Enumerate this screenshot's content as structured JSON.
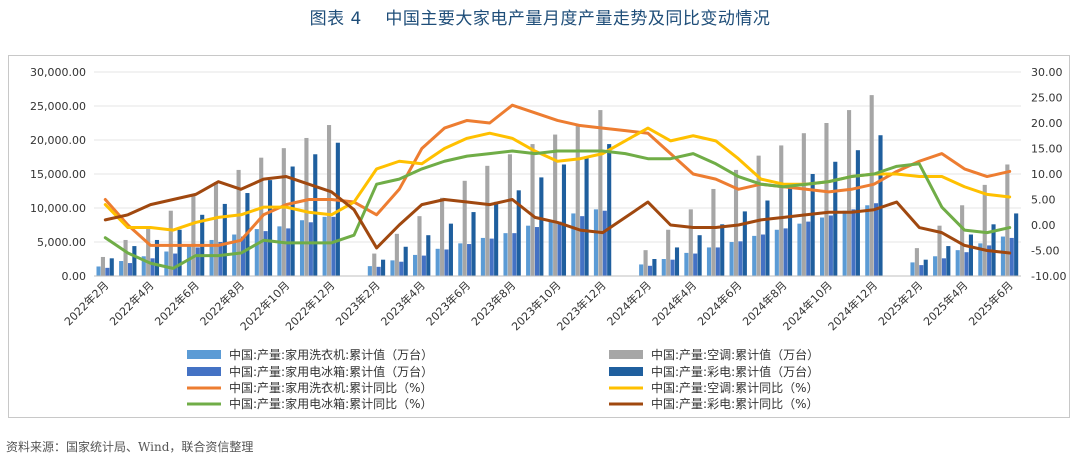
{
  "title": "图表 4    中国主要大家电产量月度产量走势及同比变动情况",
  "source": "资料来源：国家统计局、Wind，联合资信整理",
  "chart_data": {
    "type": "bar+line",
    "title": "",
    "xlabel": "",
    "ylabel": "",
    "ylim": [
      0,
      30000
    ],
    "y2lim": [
      -10,
      30
    ],
    "y_tick_labels": [
      "0.00",
      "5,000.00",
      "10,000.00",
      "15,000.00",
      "20,000.00",
      "25,000.00",
      "30,000.00"
    ],
    "y2_tick_labels": [
      "-10.00",
      "-5.00",
      "0.00",
      "5.00",
      "10.00",
      "15.00",
      "20.00",
      "25.00",
      "30.00"
    ],
    "x": [
      "2022年2月",
      "2022年3月",
      "2022年4月",
      "2022年5月",
      "2022年6月",
      "2022年7月",
      "2022年8月",
      "2022年9月",
      "2022年10月",
      "2022年11月",
      "2022年12月",
      "",
      "2023年2月",
      "2023年3月",
      "2023年4月",
      "2023年5月",
      "2023年6月",
      "2023年7月",
      "2023年8月",
      "2023年9月",
      "2023年10月",
      "2023年11月",
      "2023年12月",
      "",
      "2024年2月",
      "2024年3月",
      "2024年4月",
      "2024年5月",
      "2024年6月",
      "2024年7月",
      "2024年8月",
      "2024年9月",
      "2024年10月",
      "2024年11月",
      "2024年12月",
      "",
      "2025年2月",
      "2025年3月",
      "2025年4月",
      "2025年5月",
      "2025年6月"
    ],
    "x_tick_labels": [
      "2022年2月",
      "2022年4月",
      "2022年6月",
      "2022年8月",
      "2022年10月",
      "2022年12月",
      "2023年2月",
      "2023年4月",
      "2023年6月",
      "2023年8月",
      "2023年10月",
      "2023年12月",
      "2024年2月",
      "2024年4月",
      "2024年6月",
      "2024年8月",
      "2024年10月",
      "2024年12月",
      "2025年2月",
      "2025年4月",
      "2025年6月"
    ],
    "legend_position": "bottom",
    "bar_series": [
      {
        "name": "中国:产量:家用洗衣机:累计值（万台）",
        "color": "#5b9bd5",
        "values": [
          1400,
          2200,
          2900,
          3600,
          4500,
          5300,
          6100,
          6900,
          7300,
          8200,
          8700,
          null,
          1450,
          2300,
          3100,
          4000,
          4800,
          5600,
          6300,
          7400,
          8200,
          9200,
          9800,
          null,
          1700,
          2500,
          3400,
          4200,
          5000,
          5900,
          6800,
          7700,
          8600,
          9600,
          10400,
          null,
          2000,
          2900,
          3800,
          4800,
          5800
        ]
      },
      {
        "name": "中国:产量:空调:累计值（万台）",
        "color": "#a6a6a6",
        "values": [
          2800,
          5300,
          7300,
          9600,
          12000,
          13800,
          15600,
          17400,
          18800,
          20300,
          22200,
          null,
          3300,
          6200,
          8800,
          11500,
          14000,
          16200,
          17900,
          19400,
          20800,
          22300,
          24400,
          null,
          3800,
          6800,
          9800,
          12800,
          15600,
          17700,
          19200,
          21000,
          22500,
          24400,
          26600,
          null,
          4100,
          7400,
          10400,
          13400,
          16400
        ]
      },
      {
        "name": "中国:产量:家用电冰箱:累计值（万台）",
        "color": "#4472c4",
        "values": [
          1200,
          1900,
          2600,
          3300,
          4200,
          5000,
          5800,
          6600,
          7000,
          7900,
          8700,
          null,
          1350,
          2100,
          3000,
          3900,
          4700,
          5500,
          6300,
          7200,
          8000,
          8800,
          9600,
          null,
          1500,
          2400,
          3300,
          4200,
          5100,
          6100,
          7000,
          8000,
          8900,
          9800,
          10700,
          null,
          1600,
          2600,
          3500,
          4500,
          5600
        ]
      },
      {
        "name": "中国:产量:彩电:累计值（万台）",
        "color": "#1f5f9e",
        "values": [
          2600,
          4400,
          5300,
          6800,
          9000,
          10600,
          12200,
          14100,
          16100,
          17900,
          19600,
          null,
          2400,
          4300,
          6000,
          7700,
          9400,
          10900,
          12600,
          14500,
          16400,
          17600,
          19400,
          null,
          2500,
          4200,
          6000,
          7600,
          9500,
          11100,
          12900,
          15000,
          16800,
          18500,
          20700,
          null,
          2400,
          4400,
          6100,
          7600,
          9200
        ]
      }
    ],
    "line_series": [
      {
        "name": "中国:产量:家用洗衣机:累计同比（%）",
        "color": "#ed7d31",
        "values": [
          5.0,
          0.0,
          -4.0,
          -4.0,
          -4.0,
          -4.0,
          -3.0,
          2.0,
          4.0,
          5.0,
          5.0,
          4.5,
          2.0,
          7.0,
          15.0,
          19.0,
          20.5,
          20.0,
          23.5,
          22.0,
          20.5,
          19.5,
          19.0,
          18.5,
          18.0,
          14.0,
          10.0,
          9.0,
          7.0,
          8.0,
          7.5,
          7.0,
          6.5,
          7.0,
          8.0,
          10.5,
          12.5,
          14.0,
          11.0,
          9.5,
          10.5
        ]
      },
      {
        "name": "中国:产量:空调:累计同比（%）",
        "color": "#ffc000",
        "values": [
          4.0,
          -0.5,
          -0.5,
          -1.0,
          0.5,
          1.5,
          2.0,
          3.5,
          3.5,
          2.5,
          2.0,
          4.5,
          11.0,
          12.5,
          12.0,
          15.0,
          17.0,
          18.0,
          17.0,
          14.5,
          12.5,
          13.0,
          14.0,
          16.5,
          19.0,
          16.5,
          17.5,
          16.5,
          13.0,
          9.0,
          8.0,
          8.0,
          8.5,
          9.5,
          10.0,
          10.0,
          9.5,
          9.5,
          7.5,
          6.0,
          5.5
        ]
      },
      {
        "name": "中国:产量:家用电冰箱:累计同比（%）",
        "color": "#70ad47",
        "values": [
          -2.5,
          -5.5,
          -7.5,
          -8.5,
          -6.0,
          -6.0,
          -5.5,
          -3.0,
          -3.5,
          -3.5,
          -3.5,
          -2.0,
          8.0,
          9.0,
          11.0,
          12.5,
          13.5,
          14.0,
          14.5,
          14.0,
          14.5,
          14.5,
          14.5,
          14.0,
          13.0,
          13.0,
          14.0,
          12.0,
          9.5,
          8.0,
          7.5,
          8.0,
          8.5,
          9.5,
          10.0,
          11.5,
          12.0,
          3.5,
          -1.0,
          -1.5,
          -0.5
        ]
      },
      {
        "name": "中国:产量:彩电:累计同比（%）",
        "color": "#a0480f",
        "values": [
          1.0,
          2.0,
          4.0,
          5.0,
          6.0,
          8.5,
          7.0,
          9.0,
          9.5,
          8.0,
          6.5,
          3.0,
          -4.5,
          0.0,
          4.0,
          5.0,
          4.5,
          4.0,
          5.0,
          1.5,
          0.5,
          -1.0,
          -1.5,
          1.5,
          4.5,
          0.0,
          -0.5,
          -0.5,
          0.0,
          1.0,
          1.5,
          2.0,
          2.5,
          2.5,
          3.0,
          4.5,
          -0.5,
          -1.5,
          -4.0,
          -5.0,
          -5.5
        ]
      }
    ]
  }
}
